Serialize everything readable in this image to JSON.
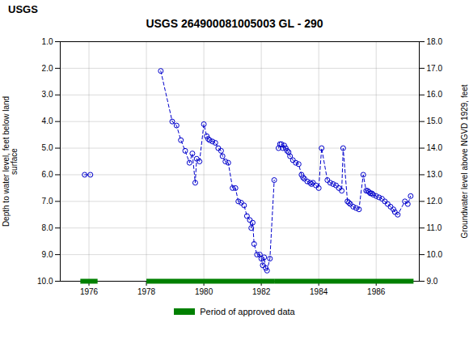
{
  "chart_data": {
    "type": "scatter",
    "title": "USGS 264900081005003 GL - 290",
    "annotations": [
      "USGS"
    ],
    "ylabel": "Depth to water level, feet below land\nsurface",
    "y2label": "Groundwater level above NGVD 1929, feet",
    "xlim": [
      1975.0,
      1987.5
    ],
    "xticks": [
      1976,
      1978,
      1980,
      1982,
      1984,
      1986
    ],
    "ylim": [
      10.0,
      1.0
    ],
    "yticks": [
      {
        "value": 1.0,
        "label": "1.0"
      },
      {
        "value": 2.0,
        "label": "2.0"
      },
      {
        "value": 3.0,
        "label": "3.0"
      },
      {
        "value": 4.0,
        "label": "4.0"
      },
      {
        "value": 5.0,
        "label": "5.0"
      },
      {
        "value": 6.0,
        "label": "6.0"
      },
      {
        "value": 7.0,
        "label": "7.0"
      },
      {
        "value": 8.0,
        "label": "8.0"
      },
      {
        "value": 9.0,
        "label": "9.0"
      },
      {
        "value": 10.0,
        "label": "10.0"
      }
    ],
    "y2lim": [
      9.0,
      18.0
    ],
    "y2ticks": [
      {
        "value": 9.0,
        "label": "9.0"
      },
      {
        "value": 10.0,
        "label": "10.0"
      },
      {
        "value": 11.0,
        "label": "11.0"
      },
      {
        "value": 12.0,
        "label": "12.0"
      },
      {
        "value": 13.0,
        "label": "13.0"
      },
      {
        "value": 14.0,
        "label": "14.0"
      },
      {
        "value": 15.0,
        "label": "15.0"
      },
      {
        "value": 16.0,
        "label": "16.0"
      },
      {
        "value": 17.0,
        "label": "17.0"
      },
      {
        "value": 18.0,
        "label": "18.0"
      }
    ],
    "grid": true,
    "legend": "bottom",
    "series": [
      {
        "type": "line",
        "color": "#0000cc",
        "marker": "circle",
        "line_style": "dashed",
        "x": [
          1975.85,
          1976.05
        ],
        "values": [
          6.0,
          6.0
        ]
      },
      {
        "type": "line",
        "color": "#0000cc",
        "marker": "circle",
        "line_style": "dashed",
        "x": [
          1978.5,
          1978.9,
          1979.05,
          1979.2,
          1979.35,
          1979.5,
          1979.6,
          1979.7,
          1979.75,
          1979.85,
          1980.0,
          1980.1,
          1980.15,
          1980.2,
          1980.3,
          1980.4,
          1980.5,
          1980.6,
          1980.65,
          1980.75,
          1980.85,
          1981.0,
          1981.1,
          1981.2,
          1981.3,
          1981.4,
          1981.5,
          1981.6,
          1981.65,
          1981.7,
          1981.75,
          1981.85,
          1981.95,
          1982.0,
          1982.05,
          1982.1,
          1982.15,
          1982.2,
          1982.3,
          1982.45
        ],
        "values": [
          2.1,
          4.0,
          4.15,
          4.7,
          5.1,
          5.55,
          5.2,
          6.3,
          5.4,
          5.5,
          4.1,
          4.55,
          4.65,
          4.7,
          4.75,
          4.8,
          5.0,
          5.1,
          5.3,
          5.5,
          5.55,
          6.5,
          6.5,
          7.0,
          7.05,
          7.15,
          7.55,
          7.7,
          8.0,
          7.8,
          8.6,
          9.0,
          9.0,
          9.15,
          9.4,
          9.1,
          9.5,
          9.6,
          9.15,
          6.2
        ]
      },
      {
        "type": "line",
        "color": "#0000cc",
        "marker": "circle",
        "line_style": "dashed",
        "x": [
          1982.6,
          1982.65,
          1982.7,
          1982.75,
          1982.8,
          1982.85,
          1982.9,
          1982.95,
          1983.0,
          1983.1,
          1983.2,
          1983.3,
          1983.4,
          1983.45,
          1983.5,
          1983.6,
          1983.7,
          1983.75,
          1983.8,
          1983.9,
          1984.0,
          1984.1,
          1984.3,
          1984.4,
          1984.5,
          1984.6,
          1984.7,
          1984.8,
          1984.85,
          1985.0,
          1985.05,
          1985.1,
          1985.2,
          1985.3,
          1985.4,
          1985.55,
          1985.65,
          1985.7,
          1985.75,
          1985.8,
          1985.85,
          1985.9,
          1986.0,
          1986.1,
          1986.2,
          1986.3,
          1986.4,
          1986.5,
          1986.6,
          1986.65,
          1986.75,
          1987.0,
          1987.1,
          1987.2
        ],
        "values": [
          5.0,
          4.85,
          4.85,
          5.0,
          4.9,
          5.0,
          5.1,
          5.15,
          5.3,
          5.45,
          5.55,
          5.6,
          6.0,
          6.1,
          6.15,
          6.25,
          6.3,
          6.35,
          6.3,
          6.4,
          6.5,
          5.0,
          6.2,
          6.3,
          6.35,
          6.4,
          6.5,
          6.6,
          5.0,
          7.0,
          7.05,
          7.1,
          7.2,
          7.25,
          7.3,
          6.0,
          6.6,
          6.6,
          6.65,
          6.7,
          6.7,
          6.75,
          6.8,
          6.85,
          6.9,
          7.0,
          7.1,
          7.2,
          7.3,
          7.4,
          7.5,
          7.0,
          7.1,
          6.8
        ]
      },
      {
        "name": "Period of approved data",
        "type": "range",
        "color": "#008000",
        "x": [
          [
            1975.7,
            1976.3
          ],
          [
            1978.0,
            1982.45
          ],
          [
            1982.45,
            1987.3
          ]
        ],
        "values": [
          10.0,
          10.0,
          10.0
        ]
      }
    ]
  }
}
